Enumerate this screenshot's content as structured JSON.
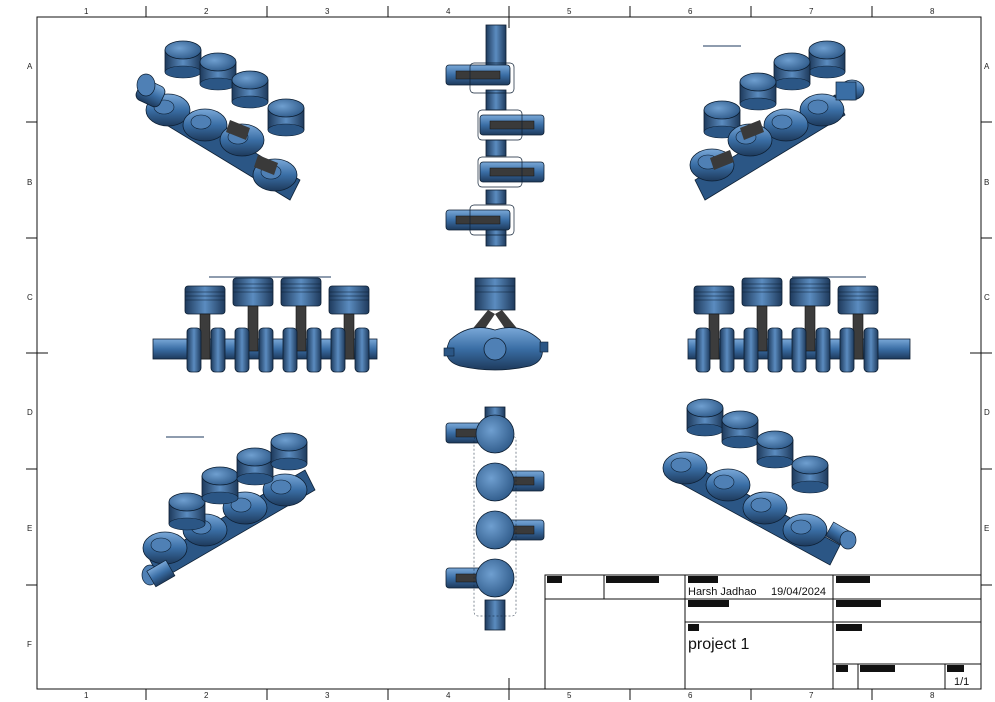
{
  "sheet": {
    "columns": [
      "1",
      "2",
      "3",
      "4",
      "5",
      "6",
      "7",
      "8"
    ],
    "rows": [
      "A",
      "B",
      "C",
      "D",
      "E",
      "F"
    ]
  },
  "views": [
    {
      "name": "isometric-top-left"
    },
    {
      "name": "top-view"
    },
    {
      "name": "isometric-top-right"
    },
    {
      "name": "front-view"
    },
    {
      "name": "side-view"
    },
    {
      "name": "rear-view"
    },
    {
      "name": "isometric-bottom-left"
    },
    {
      "name": "bottom-view"
    },
    {
      "name": "isometric-bottom-right"
    }
  ],
  "title_block": {
    "author": "Harsh Jadhao",
    "date": "19/04/2024",
    "title": "project 1",
    "sheet_number": "1/1"
  },
  "colors": {
    "part_blue": "#3a6ea5",
    "part_dark": "#1e3a5c",
    "part_light": "#6f9fd0",
    "rod_gray": "#444444",
    "frame": "#111111"
  }
}
